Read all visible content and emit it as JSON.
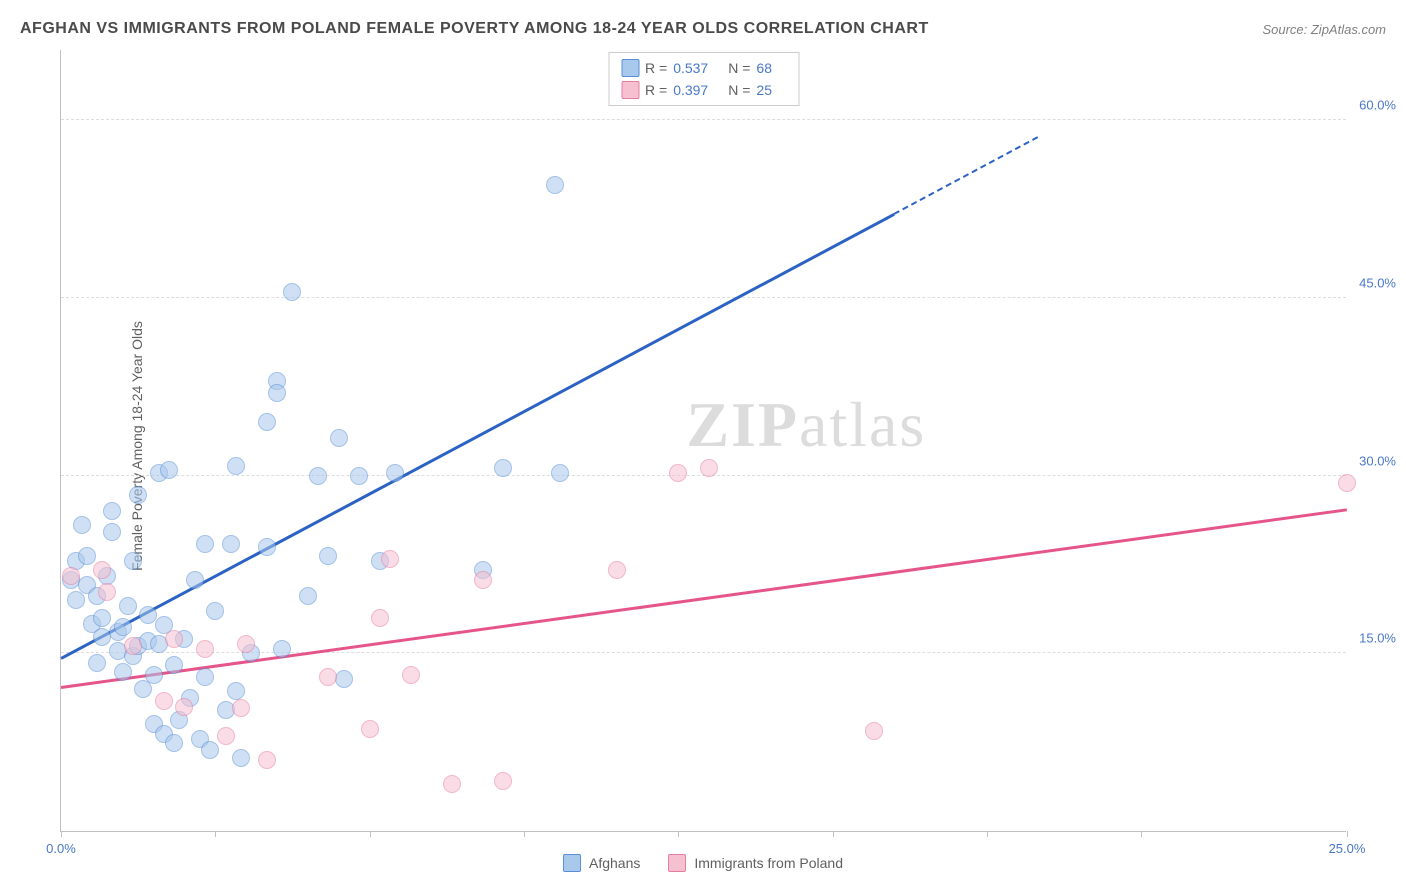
{
  "title": "AFGHAN VS IMMIGRANTS FROM POLAND FEMALE POVERTY AMONG 18-24 YEAR OLDS CORRELATION CHART",
  "source": "Source: ZipAtlas.com",
  "watermark": "ZIPatlas",
  "y_axis_label": "Female Poverty Among 18-24 Year Olds",
  "chart": {
    "type": "scatter",
    "background_color": "#ffffff",
    "grid_color": "#dddddd",
    "axis_color": "#c0c0c0",
    "tick_label_color": "#4a78c8",
    "xlim": [
      0,
      25
    ],
    "ylim": [
      0,
      66
    ],
    "x_ticks": [
      0,
      3,
      6,
      9,
      12,
      15,
      18,
      21,
      25
    ],
    "x_tick_labels": {
      "0": "0.0%",
      "25": "25.0%"
    },
    "y_ticks": [
      15,
      30,
      45,
      60
    ],
    "y_tick_labels": {
      "15": "15.0%",
      "30": "30.0%",
      "45": "45.0%",
      "60": "60.0%"
    },
    "point_radius": 8,
    "point_opacity": 0.55,
    "series": [
      {
        "name": "Afghans",
        "color_fill": "#a8c8ec",
        "color_stroke": "#5a8fd6",
        "r": "0.537",
        "n": "68",
        "trend": {
          "x1": 0,
          "y1": 14.5,
          "x2": 16.2,
          "y2": 52,
          "dash_extend_to_x": 19,
          "dash_extend_to_y": 58.5,
          "color": "#2b62c4",
          "width": 2.5
        },
        "points": [
          [
            0.2,
            21.2
          ],
          [
            0.3,
            22.8
          ],
          [
            0.3,
            19.5
          ],
          [
            0.4,
            25.8
          ],
          [
            0.5,
            20.8
          ],
          [
            0.5,
            23.2
          ],
          [
            0.6,
            17.5
          ],
          [
            0.7,
            14.2
          ],
          [
            0.7,
            19.8
          ],
          [
            0.8,
            18.0
          ],
          [
            0.8,
            16.4
          ],
          [
            0.9,
            21.5
          ],
          [
            1.0,
            25.2
          ],
          [
            1.0,
            27.0
          ],
          [
            1.1,
            15.2
          ],
          [
            1.1,
            16.8
          ],
          [
            1.2,
            13.4
          ],
          [
            1.2,
            17.2
          ],
          [
            1.3,
            19.0
          ],
          [
            1.4,
            14.8
          ],
          [
            1.4,
            22.8
          ],
          [
            1.5,
            28.4
          ],
          [
            1.5,
            15.6
          ],
          [
            1.6,
            12.0
          ],
          [
            1.7,
            16.0
          ],
          [
            1.7,
            18.2
          ],
          [
            1.8,
            13.2
          ],
          [
            1.8,
            9.0
          ],
          [
            1.9,
            15.8
          ],
          [
            1.9,
            30.2
          ],
          [
            2.0,
            17.4
          ],
          [
            2.0,
            8.2
          ],
          [
            2.1,
            30.5
          ],
          [
            2.2,
            14.0
          ],
          [
            2.2,
            7.4
          ],
          [
            2.3,
            9.4
          ],
          [
            2.4,
            16.2
          ],
          [
            2.5,
            11.2
          ],
          [
            2.6,
            21.2
          ],
          [
            2.7,
            7.8
          ],
          [
            2.8,
            13.0
          ],
          [
            2.8,
            24.2
          ],
          [
            2.9,
            6.8
          ],
          [
            3.0,
            18.6
          ],
          [
            3.2,
            10.2
          ],
          [
            3.3,
            24.2
          ],
          [
            3.4,
            11.8
          ],
          [
            3.4,
            30.8
          ],
          [
            3.5,
            6.2
          ],
          [
            3.7,
            15.0
          ],
          [
            4.0,
            34.5
          ],
          [
            4.0,
            24.0
          ],
          [
            4.2,
            38.0
          ],
          [
            4.2,
            37.0
          ],
          [
            4.3,
            15.4
          ],
          [
            4.5,
            45.5
          ],
          [
            4.8,
            19.8
          ],
          [
            5.0,
            30.0
          ],
          [
            5.2,
            23.2
          ],
          [
            5.4,
            33.2
          ],
          [
            5.5,
            12.8
          ],
          [
            5.8,
            30.0
          ],
          [
            6.2,
            22.8
          ],
          [
            6.5,
            30.2
          ],
          [
            8.2,
            22.0
          ],
          [
            8.6,
            30.6
          ],
          [
            9.6,
            54.5
          ],
          [
            9.7,
            30.2
          ]
        ]
      },
      {
        "name": "Immigrants from Poland",
        "color_fill": "#f5c1d1",
        "color_stroke": "#e87ba1",
        "r": "0.397",
        "n": "25",
        "trend": {
          "x1": 0,
          "y1": 12.0,
          "x2": 25,
          "y2": 27.0,
          "color": "#e5558a",
          "width": 2.5
        },
        "points": [
          [
            0.2,
            21.5
          ],
          [
            0.8,
            22.0
          ],
          [
            0.9,
            20.2
          ],
          [
            1.4,
            15.6
          ],
          [
            2.0,
            11.0
          ],
          [
            2.2,
            16.2
          ],
          [
            2.4,
            10.5
          ],
          [
            2.8,
            15.4
          ],
          [
            3.2,
            8.0
          ],
          [
            3.5,
            10.4
          ],
          [
            3.6,
            15.8
          ],
          [
            4.0,
            6.0
          ],
          [
            5.2,
            13.0
          ],
          [
            6.0,
            8.6
          ],
          [
            6.2,
            18.0
          ],
          [
            6.4,
            23.0
          ],
          [
            6.8,
            13.2
          ],
          [
            7.6,
            4.0
          ],
          [
            8.2,
            21.2
          ],
          [
            8.6,
            4.2
          ],
          [
            10.8,
            22.0
          ],
          [
            12.0,
            30.2
          ],
          [
            12.6,
            30.6
          ],
          [
            15.8,
            8.4
          ],
          [
            25.0,
            29.4
          ]
        ]
      }
    ]
  },
  "legend_bottom": [
    {
      "label": "Afghans",
      "fill": "#a8c8ec",
      "stroke": "#5a8fd6"
    },
    {
      "label": "Immigrants from Poland",
      "fill": "#f5c1d1",
      "stroke": "#e87ba1"
    }
  ],
  "stats_box": {
    "r_label": "R =",
    "n_label": "N ="
  }
}
